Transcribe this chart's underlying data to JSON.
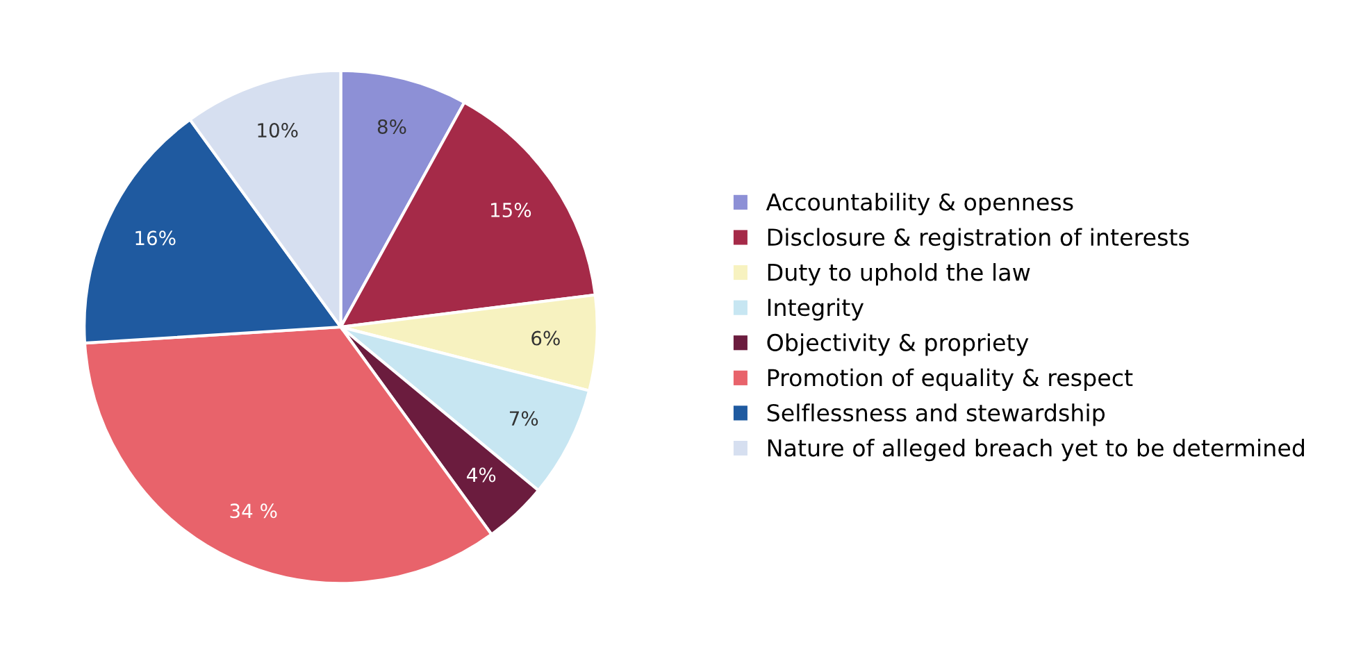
{
  "chart_data": {
    "type": "pie",
    "categories": [
      "Accountability & openness",
      "Disclosure & registration of interests",
      "Duty to uphold the law",
      "Integrity",
      "Objectivity & propriety",
      "Promotion of equality & respect",
      "Selflessness and stewardship",
      "Nature of alleged breach yet to be determined"
    ],
    "values": [
      8,
      15,
      6,
      7,
      4,
      34,
      16,
      10
    ],
    "value_labels": [
      "8%",
      "15%",
      "6%",
      "7%",
      "4%",
      "34 %",
      "16%",
      "10%"
    ],
    "colors": [
      "#8d90d6",
      "#a52a48",
      "#f7f2c0",
      "#c7e6f2",
      "#6b1c3e",
      "#e8636b",
      "#1f5aa0",
      "#d6dff0"
    ],
    "legend": "right"
  }
}
